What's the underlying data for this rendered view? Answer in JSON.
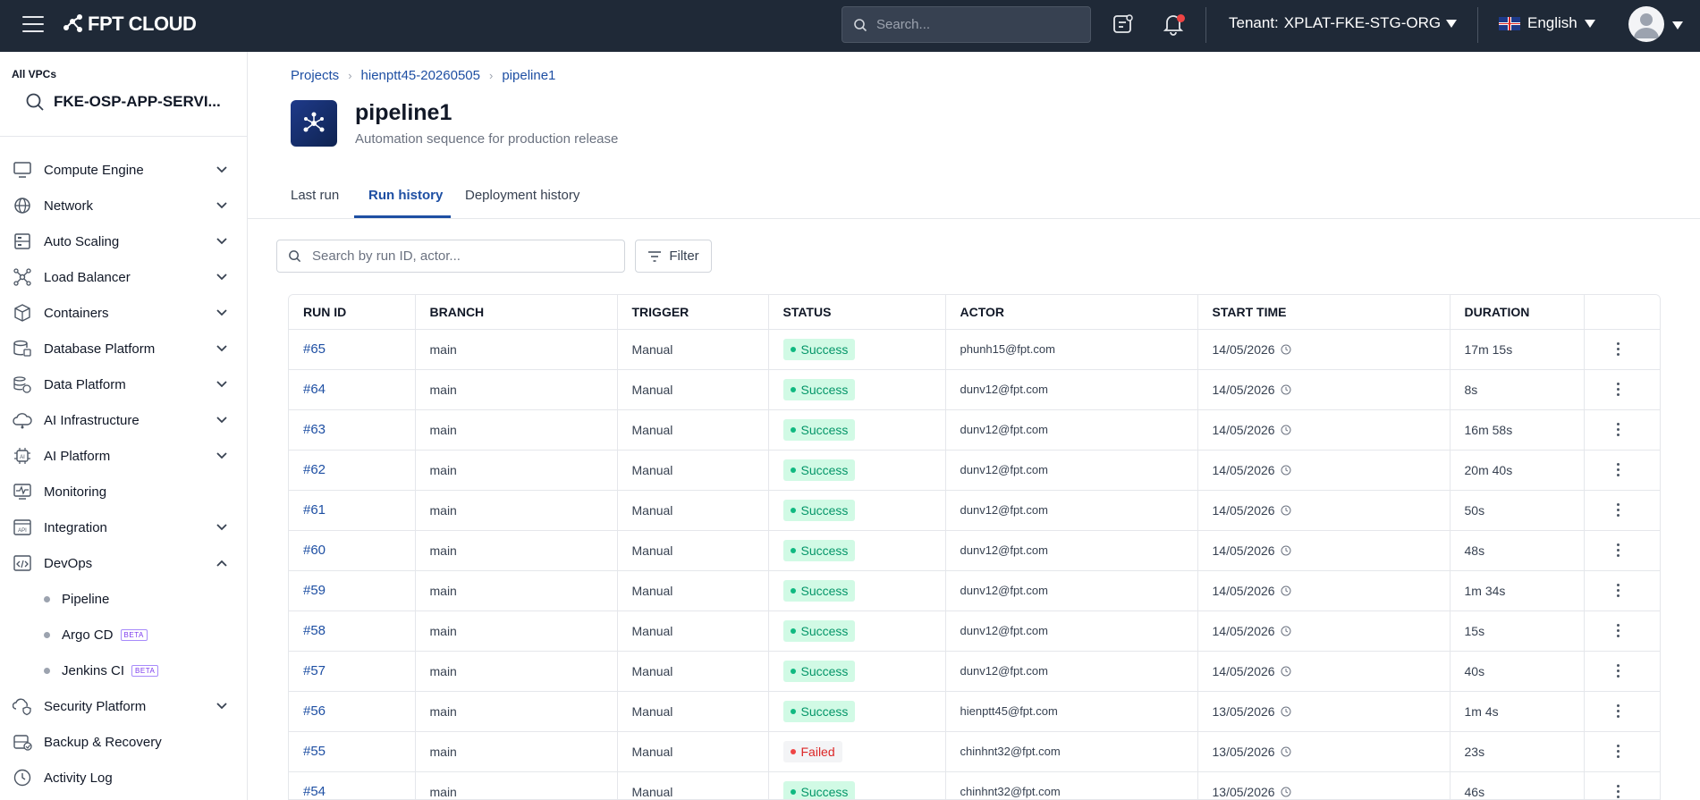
{
  "header": {
    "logo_text": "FPT CLOUD",
    "search_placeholder": "Search...",
    "tenant_label": "Tenant:",
    "tenant_value": "XPLAT-FKE-STG-ORG",
    "language": "English"
  },
  "sidebar": {
    "vpc_label": "All VPCs",
    "vpc_name": "FKE-OSP-APP-SERVI...",
    "items": [
      {
        "label": "Compute Engine",
        "icon": "monitor-icon",
        "chevron": "down"
      },
      {
        "label": "Network",
        "icon": "globe-icon",
        "chevron": "down"
      },
      {
        "label": "Auto Scaling",
        "icon": "server-icon",
        "chevron": "down"
      },
      {
        "label": "Load Balancer",
        "icon": "network-nodes-icon",
        "chevron": "down"
      },
      {
        "label": "Containers",
        "icon": "box-icon",
        "chevron": "down"
      },
      {
        "label": "Database Platform",
        "icon": "database-icon",
        "chevron": "down"
      },
      {
        "label": "Data Platform",
        "icon": "data-stack-icon",
        "chevron": "down"
      },
      {
        "label": "AI Infrastructure",
        "icon": "cloud-ai-icon",
        "chevron": "down"
      },
      {
        "label": "AI Platform",
        "icon": "chip-ai-icon",
        "chevron": "down"
      },
      {
        "label": "Monitoring",
        "icon": "pulse-icon",
        "chevron": ""
      },
      {
        "label": "Integration",
        "icon": "api-icon",
        "chevron": "down"
      },
      {
        "label": "DevOps",
        "icon": "code-window-icon",
        "chevron": "up"
      }
    ],
    "devops_sub": [
      {
        "label": "Pipeline",
        "beta": ""
      },
      {
        "label": "Argo CD",
        "beta": "BETA"
      },
      {
        "label": "Jenkins CI",
        "beta": "BETA"
      }
    ],
    "items_after": [
      {
        "label": "Security Platform",
        "icon": "shield-cloud-icon",
        "chevron": "down"
      },
      {
        "label": "Backup & Recovery",
        "icon": "backup-icon",
        "chevron": ""
      },
      {
        "label": "Activity Log",
        "icon": "clock-icon",
        "chevron": ""
      }
    ]
  },
  "breadcrumb": [
    "Projects",
    "hienptt45-20260505",
    "pipeline1"
  ],
  "page": {
    "title": "pipeline1",
    "subtitle": "Automation sequence for production release"
  },
  "tabs": [
    "Last run",
    "Run history",
    "Deployment history"
  ],
  "active_tab": "Run history",
  "toolbar": {
    "search_placeholder": "Search by run ID, actor...",
    "filter_label": "Filter"
  },
  "table": {
    "columns": [
      "RUN ID",
      "BRANCH",
      "TRIGGER",
      "STATUS",
      "ACTOR",
      "START TIME",
      "DURATION"
    ],
    "rows": [
      {
        "run_id": "#65",
        "branch": "main",
        "trigger": "Manual",
        "status": "Success",
        "actor": "phunh15@fpt.com",
        "start": "14/05/2026",
        "duration": "17m 15s"
      },
      {
        "run_id": "#64",
        "branch": "main",
        "trigger": "Manual",
        "status": "Success",
        "actor": "dunv12@fpt.com",
        "start": "14/05/2026",
        "duration": "8s"
      },
      {
        "run_id": "#63",
        "branch": "main",
        "trigger": "Manual",
        "status": "Success",
        "actor": "dunv12@fpt.com",
        "start": "14/05/2026",
        "duration": "16m 58s"
      },
      {
        "run_id": "#62",
        "branch": "main",
        "trigger": "Manual",
        "status": "Success",
        "actor": "dunv12@fpt.com",
        "start": "14/05/2026",
        "duration": "20m 40s"
      },
      {
        "run_id": "#61",
        "branch": "main",
        "trigger": "Manual",
        "status": "Success",
        "actor": "dunv12@fpt.com",
        "start": "14/05/2026",
        "duration": "50s"
      },
      {
        "run_id": "#60",
        "branch": "main",
        "trigger": "Manual",
        "status": "Success",
        "actor": "dunv12@fpt.com",
        "start": "14/05/2026",
        "duration": "48s"
      },
      {
        "run_id": "#59",
        "branch": "main",
        "trigger": "Manual",
        "status": "Success",
        "actor": "dunv12@fpt.com",
        "start": "14/05/2026",
        "duration": "1m 34s"
      },
      {
        "run_id": "#58",
        "branch": "main",
        "trigger": "Manual",
        "status": "Success",
        "actor": "dunv12@fpt.com",
        "start": "14/05/2026",
        "duration": "15s"
      },
      {
        "run_id": "#57",
        "branch": "main",
        "trigger": "Manual",
        "status": "Success",
        "actor": "dunv12@fpt.com",
        "start": "14/05/2026",
        "duration": "40s"
      },
      {
        "run_id": "#56",
        "branch": "main",
        "trigger": "Manual",
        "status": "Success",
        "actor": "hienptt45@fpt.com",
        "start": "13/05/2026",
        "duration": "1m 4s"
      },
      {
        "run_id": "#55",
        "branch": "main",
        "trigger": "Manual",
        "status": "Failed",
        "actor": "chinhnt32@fpt.com",
        "start": "13/05/2026",
        "duration": "23s"
      },
      {
        "run_id": "#54",
        "branch": "main",
        "trigger": "Manual",
        "status": "Success",
        "actor": "chinhnt32@fpt.com",
        "start": "13/05/2026",
        "duration": "46s"
      }
    ]
  },
  "colors": {
    "topbar": "#1f2937",
    "accent": "#1e4fa3",
    "success": "#059669",
    "failed": "#dc2626"
  }
}
